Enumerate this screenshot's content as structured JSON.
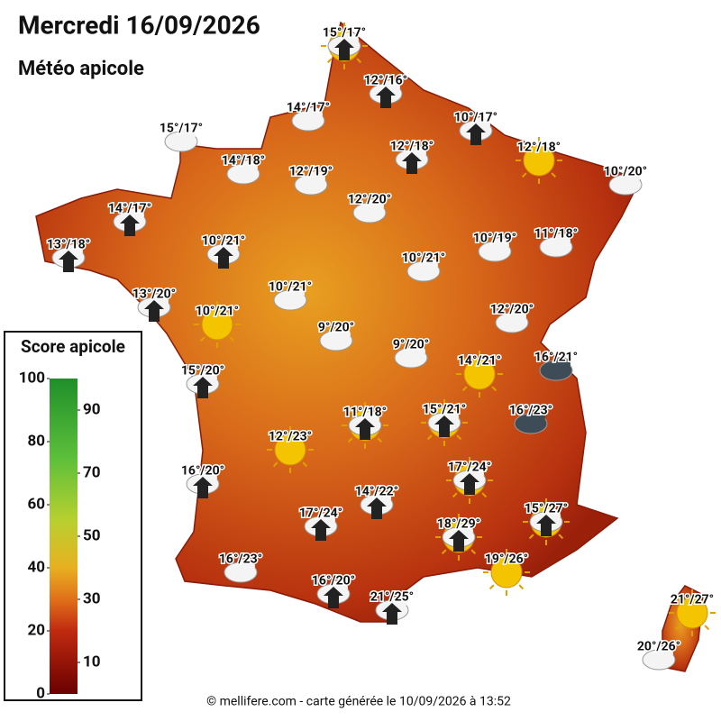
{
  "header": {
    "title": "Mercredi 16/09/2026",
    "subtitle": "Météo apicole"
  },
  "legend": {
    "title": "Score apicole",
    "range": [
      0,
      100
    ],
    "ticks": [
      0,
      10,
      20,
      30,
      40,
      50,
      60,
      70,
      80,
      90,
      100
    ]
  },
  "stations": [
    {
      "label": "15°/17°"
    },
    {
      "label": "12°/16°"
    },
    {
      "label": "14°/17°"
    },
    {
      "label": "10°/17°"
    },
    {
      "label": "15°/17°"
    },
    {
      "label": "12°/18°"
    },
    {
      "label": "12°/18°"
    },
    {
      "label": "14°/18°"
    },
    {
      "label": "10°/20°"
    },
    {
      "label": "12°/19°"
    },
    {
      "label": "12°/20°"
    },
    {
      "label": "14°/17°"
    },
    {
      "label": "13°/18°"
    },
    {
      "label": "10°/21°"
    },
    {
      "label": "10°/19°"
    },
    {
      "label": "11°/18°"
    },
    {
      "label": "10°/21°"
    },
    {
      "label": "10°/21°"
    },
    {
      "label": "13°/20°"
    },
    {
      "label": "12°/20°"
    },
    {
      "label": "10°/21°"
    },
    {
      "label": "9°/20°"
    },
    {
      "label": "9°/20°"
    },
    {
      "label": "14°/21°"
    },
    {
      "label": "16°/21°"
    },
    {
      "label": "15°/20°"
    },
    {
      "label": "16°/23°"
    },
    {
      "label": "11°/18°"
    },
    {
      "label": "15°/21°"
    },
    {
      "label": "12°/23°"
    },
    {
      "label": "17°/24°"
    },
    {
      "label": "16°/20°"
    },
    {
      "label": "14°/22°"
    },
    {
      "label": "17°/24°"
    },
    {
      "label": "18°/29°"
    },
    {
      "label": "15°/27°"
    },
    {
      "label": "16°/23°"
    },
    {
      "label": "19°/26°"
    },
    {
      "label": "16°/20°"
    },
    {
      "label": "21°/25°"
    },
    {
      "label": "21°/27°"
    },
    {
      "label": "20°/26°"
    }
  ],
  "footer": "© mellifere.com - carte générée le 10/09/2026 à 13:52"
}
